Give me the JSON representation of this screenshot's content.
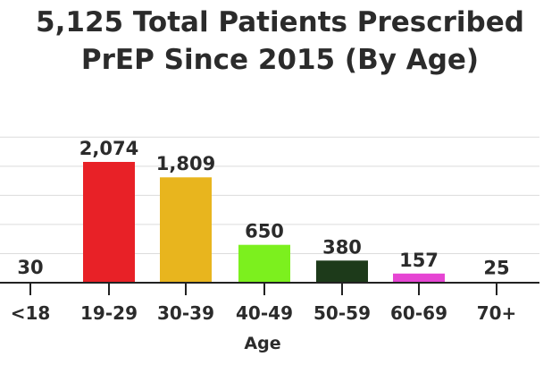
{
  "chart_data": {
    "type": "bar",
    "title_line1": "5,125 Total Patients Prescribed",
    "title_line2": "PrEP Since 2015 (By Age)",
    "xlabel": "Age",
    "ylabel": "",
    "categories": [
      "<18",
      "19-29",
      "30-39",
      "40-49",
      "50-59",
      "60-69",
      "70+"
    ],
    "values": [
      30,
      2074,
      1809,
      650,
      380,
      157,
      25
    ],
    "value_labels": [
      "30",
      "2,074",
      "1,809",
      "650",
      "380",
      "157",
      "25"
    ],
    "colors": [
      "#e82127",
      "#e82127",
      "#e8b51e",
      "#7cf01e",
      "#1d3a1a",
      "#e645d3",
      "#e645d3"
    ],
    "ylim": [
      0,
      2500
    ],
    "grid": true
  }
}
